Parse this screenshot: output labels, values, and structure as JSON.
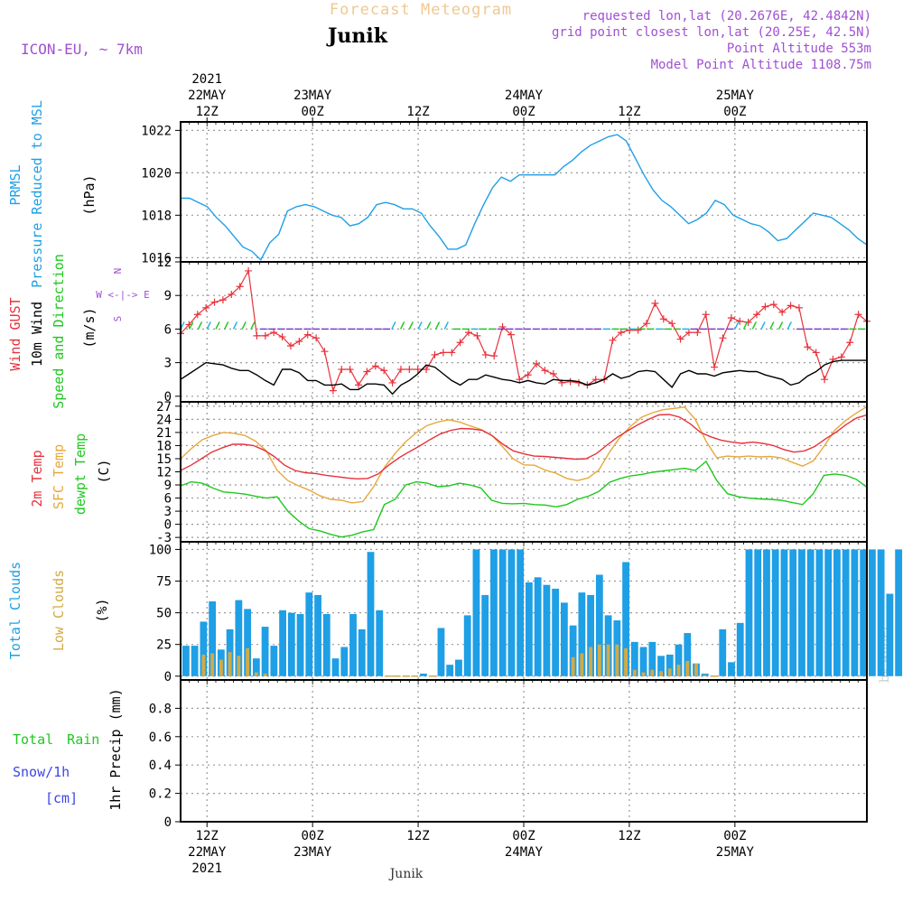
{
  "header": {
    "title": "Forecast Meteogram",
    "location": "Junik",
    "model": "ICON-EU, ~ 7km",
    "requested": "requested lon,lat (20.2676E, 42.4842N)",
    "gridpoint": "grid point closest lon,lat (20.25E, 42.5N)",
    "point_altitude": "Point Altitude 553m",
    "model_altitude": "Model Point Altitude 1108.75m",
    "footer_location": "Junik",
    "watermark": "by Angel"
  },
  "time_axis": {
    "hours": 78,
    "major_top": [
      {
        "h": 3,
        "l1": "2021",
        "l2": "22MAY",
        "l3": "12Z"
      },
      {
        "h": 15,
        "l1": "",
        "l2": "23MAY",
        "l3": "00Z"
      },
      {
        "h": 27,
        "l1": "",
        "l2": "",
        "l3": "12Z"
      },
      {
        "h": 39,
        "l1": "",
        "l2": "24MAY",
        "l3": "00Z"
      },
      {
        "h": 51,
        "l1": "",
        "l2": "",
        "l3": "12Z"
      },
      {
        "h": 63,
        "l1": "",
        "l2": "25MAY",
        "l3": "00Z"
      }
    ],
    "major_bottom": [
      {
        "h": 3,
        "l1": "12Z",
        "l2": "22MAY",
        "l3": "2021"
      },
      {
        "h": 15,
        "l1": "00Z",
        "l2": "23MAY",
        "l3": ""
      },
      {
        "h": 27,
        "l1": "12Z",
        "l2": "",
        "l3": ""
      },
      {
        "h": 39,
        "l1": "00Z",
        "l2": "24MAY",
        "l3": ""
      },
      {
        "h": 51,
        "l1": "12Z",
        "l2": "",
        "l3": ""
      },
      {
        "h": 63,
        "l1": "00Z",
        "l2": "25MAY",
        "l3": ""
      }
    ]
  },
  "colors": {
    "pressure": "#1e9fe6",
    "gust": "#e8323c",
    "wind": "#000000",
    "arrowCyan": "#1eb4e6",
    "arrowPurple": "#7d3cd2",
    "green": "#1ec81e",
    "t2m": "#e8323c",
    "sfc": "#e6a83c",
    "dew": "#1ec81e",
    "totalCloud": "#1e9fe6",
    "lowCloud": "#d2aa46",
    "violet": "#a050d2",
    "rain": "#1ec81e",
    "snow": "#3c46e6",
    "grid": "#999999"
  },
  "chart_data": [
    {
      "type": "line",
      "title": "PRMSL Pressure Reduced to MSL",
      "ylabel_lines": [
        "PRMSL",
        "Pressure Reduced to MSL",
        "(hPa)"
      ],
      "ylim": [
        1015.8,
        1022.4
      ],
      "yticks": [
        1016,
        1018,
        1020,
        1022
      ],
      "series": [
        {
          "name": "Pressure",
          "values": [
            1018.8,
            1018.8,
            1018.6,
            1018.4,
            1017.9,
            1017.5,
            1017.0,
            1016.5,
            1016.3,
            1015.9,
            1016.7,
            1017.1,
            1018.2,
            1018.4,
            1018.5,
            1018.4,
            1018.2,
            1018.0,
            1017.9,
            1017.5,
            1017.6,
            1017.9,
            1018.5,
            1018.6,
            1018.5,
            1018.3,
            1018.3,
            1018.1,
            1017.5,
            1017.0,
            1016.4,
            1016.4,
            1016.6,
            1017.6,
            1018.5,
            1019.3,
            1019.8,
            1019.6,
            1019.9,
            1019.9,
            1019.9,
            1019.9,
            1019.9,
            1020.3,
            1020.6,
            1021.0,
            1021.3,
            1021.5,
            1021.7,
            1021.8,
            1021.5,
            1020.7,
            1019.9,
            1019.2,
            1018.7,
            1018.4,
            1018.0,
            1017.6,
            1017.8,
            1018.1,
            1018.7,
            1018.5,
            1018.0,
            1017.8,
            1017.6,
            1017.5,
            1017.2,
            1016.8,
            1016.9,
            1017.3,
            1017.7,
            1018.1,
            1018.0,
            1017.9,
            1017.6,
            1017.3,
            1016.9,
            1016.6
          ]
        }
      ]
    },
    {
      "type": "line",
      "title": "Wind GUST / 10m Wind Speed and Direction",
      "ylabel_lines": [
        "Wind GUST",
        "10m Wind",
        "Speed and Direction",
        "(m/s)"
      ],
      "compass": [
        "N",
        "W <-|-> E",
        "S"
      ],
      "ylim": [
        -0.5,
        12
      ],
      "yticks": [
        0,
        3,
        6,
        9,
        12
      ],
      "series": [
        {
          "name": "Wind GUST",
          "values": [
            5.6,
            6.4,
            7.3,
            7.9,
            8.4,
            8.6,
            9.1,
            9.8,
            11.2,
            5.4,
            5.4,
            5.7,
            5.3,
            4.5,
            4.9,
            5.5,
            5.2,
            4.0,
            0.5,
            2.4,
            2.4,
            1.0,
            2.2,
            2.7,
            2.3,
            1.2,
            2.4,
            2.4,
            2.4,
            2.4,
            3.7,
            3.9,
            3.9,
            4.8,
            5.7,
            5.4,
            3.7,
            3.6,
            6.2,
            5.5,
            1.5,
            1.9,
            2.9,
            2.3,
            2.0,
            1.2,
            1.3,
            1.2,
            1.0,
            1.5,
            1.5,
            5.0,
            5.7,
            5.9,
            5.9,
            6.5,
            8.3,
            6.9,
            6.5,
            5.1,
            5.7,
            5.7,
            7.3,
            2.6,
            5.2,
            7.0,
            6.7,
            6.6,
            7.3,
            8.0,
            8.2,
            7.5,
            8.1,
            7.9,
            4.4,
            3.9,
            1.5,
            3.3,
            3.5,
            4.8,
            7.3,
            6.7
          ]
        },
        {
          "name": "10m Wind",
          "values": [
            1.5,
            2.0,
            2.5,
            3.0,
            2.9,
            2.8,
            2.5,
            2.3,
            2.3,
            1.9,
            1.4,
            1.0,
            2.4,
            2.4,
            2.1,
            1.4,
            1.4,
            1.0,
            1.0,
            1.1,
            0.6,
            0.6,
            1.1,
            1.1,
            1.0,
            0.2,
            1.0,
            1.4,
            2.0,
            2.8,
            2.6,
            2.0,
            1.4,
            1.0,
            1.5,
            1.5,
            1.9,
            1.7,
            1.5,
            1.4,
            1.2,
            1.4,
            1.2,
            1.1,
            1.5,
            1.4,
            1.4,
            1.3,
            1.0,
            1.2,
            1.5,
            2.0,
            1.6,
            1.8,
            2.2,
            2.3,
            2.2,
            1.5,
            0.8,
            2.0,
            2.3,
            2.0,
            2.0,
            1.8,
            2.1,
            2.2,
            2.3,
            2.2,
            2.2,
            1.9,
            1.7,
            1.5,
            1.0,
            1.2,
            1.8,
            2.2,
            2.8,
            3.1,
            3.2,
            3.2,
            3.2,
            3.2
          ]
        }
      ]
    },
    {
      "type": "line",
      "title": "2m Temp / SFC Temp / dewpt Temp",
      "ylabel_lines": [
        "2m Temp",
        "SFC Temp",
        "dewpt Temp",
        "(C)"
      ],
      "ylim": [
        -4,
        28
      ],
      "yticks": [
        -3,
        0,
        3,
        6,
        9,
        12,
        15,
        18,
        21,
        24,
        27
      ],
      "series": [
        {
          "name": "2m Temp",
          "values": [
            12.3,
            13.5,
            15.0,
            16.5,
            17.5,
            18.3,
            18.3,
            18.0,
            17.0,
            15.5,
            13.5,
            12.3,
            11.8,
            11.6,
            11.2,
            10.9,
            10.6,
            10.4,
            10.5,
            11.5,
            13.5,
            15.2,
            16.6,
            17.9,
            19.4,
            20.7,
            21.5,
            21.9,
            21.8,
            21.5,
            20.2,
            18.3,
            16.8,
            16.1,
            15.6,
            15.5,
            15.3,
            15.1,
            14.9,
            15.0,
            16.2,
            18.1,
            19.9,
            21.4,
            22.8,
            24.0,
            25.0,
            25.1,
            24.5,
            23.0,
            21.0,
            20.0,
            19.2,
            18.8,
            18.5,
            18.8,
            18.5,
            18.0,
            17.1,
            16.5,
            16.8,
            17.8,
            19.5,
            21.0,
            22.8,
            24.3,
            25.0
          ]
        },
        {
          "name": "SFC Temp",
          "values": [
            15.0,
            17.3,
            19.3,
            20.3,
            21.0,
            20.8,
            20.3,
            19.0,
            16.8,
            12.3,
            10.0,
            8.8,
            7.8,
            6.5,
            5.7,
            5.5,
            4.9,
            5.2,
            8.6,
            13.0,
            16.2,
            18.9,
            21.0,
            22.6,
            23.4,
            23.9,
            23.4,
            22.5,
            21.7,
            20.4,
            17.8,
            15.0,
            13.6,
            13.5,
            12.4,
            11.7,
            10.5,
            10.0,
            10.6,
            12.4,
            16.5,
            20.0,
            22.5,
            24.5,
            25.5,
            26.2,
            26.5,
            26.8,
            24.0,
            19.0,
            15.2,
            15.6,
            15.4,
            15.6,
            15.4,
            15.5,
            15.2,
            14.2,
            13.3,
            14.5,
            17.8,
            21.5,
            23.7,
            25.4,
            26.9
          ]
        },
        {
          "name": "dewpt Temp",
          "values": [
            8.8,
            9.7,
            9.4,
            8.3,
            7.4,
            7.2,
            6.9,
            6.4,
            6.0,
            6.3,
            3.0,
            0.8,
            -1.0,
            -1.5,
            -2.3,
            -2.9,
            -2.5,
            -1.7,
            -1.2,
            4.5,
            5.7,
            9.0,
            9.7,
            9.4,
            8.6,
            8.8,
            9.4,
            9.0,
            8.3,
            5.5,
            4.8,
            4.7,
            4.8,
            4.5,
            4.4,
            4.0,
            4.5,
            5.7,
            6.4,
            7.5,
            9.6,
            10.5,
            11.1,
            11.4,
            11.9,
            12.2,
            12.5,
            12.8,
            12.3,
            14.4,
            10.0,
            7.0,
            6.3,
            6.0,
            5.8,
            5.7,
            5.5,
            5.0,
            4.5,
            7.0,
            11.2,
            11.5,
            11.2,
            10.3,
            8.5
          ]
        }
      ]
    },
    {
      "type": "bar",
      "title": "Total Clouds / Low Clouds",
      "ylabel_lines": [
        "Total Clouds",
        "Low Clouds",
        "(%)"
      ],
      "ylim": [
        -3,
        106
      ],
      "yticks": [
        0,
        25,
        50,
        75,
        100
      ],
      "series": [
        {
          "name": "Total Clouds",
          "values": [
            24,
            24,
            43,
            59,
            21,
            37,
            60,
            53,
            14,
            39,
            24,
            52,
            50,
            49,
            66,
            64,
            49,
            14,
            23,
            49,
            37,
            98,
            52,
            0,
            0,
            0,
            0,
            2,
            0,
            38,
            9,
            13,
            48,
            100,
            64,
            100,
            100,
            100,
            100,
            74,
            78,
            72,
            69,
            58,
            40,
            66,
            64,
            80,
            48,
            44,
            90,
            27,
            23,
            27,
            16,
            17,
            25,
            34,
            10,
            2,
            0,
            37,
            11,
            42,
            100,
            100,
            100,
            100,
            100,
            100,
            100,
            100,
            100,
            100,
            100,
            100,
            100,
            100,
            100,
            100,
            65,
            100
          ]
        },
        {
          "name": "Low Clouds",
          "values": [
            0,
            0,
            17,
            18,
            13,
            19,
            16,
            22,
            3,
            2,
            0,
            0,
            0,
            0,
            0,
            0,
            0,
            0,
            0,
            0,
            0,
            0,
            0,
            0,
            0,
            0,
            0,
            0,
            0,
            0,
            0,
            0,
            0,
            0,
            0,
            0,
            0,
            0,
            0,
            0,
            0,
            0,
            0,
            0,
            15,
            18,
            23,
            25,
            25,
            25,
            22,
            5,
            3,
            5,
            4,
            6,
            9,
            12,
            10,
            1,
            0,
            0,
            0,
            0,
            0,
            0,
            0,
            0,
            0,
            0,
            0,
            0,
            0,
            0,
            0,
            0,
            0,
            0,
            0,
            0,
            0,
            0
          ]
        }
      ]
    },
    {
      "type": "line",
      "title": "1hr Precip",
      "ylabel_lines": [
        "Total Rain",
        "Snow/1h",
        "[cm]",
        "1hr Precip (mm)"
      ],
      "ylim": [
        0,
        1.0
      ],
      "yticks": [
        0,
        0.2,
        0.4,
        0.6,
        0.8
      ],
      "series": [
        {
          "name": "Total Rain",
          "values": []
        }
      ]
    }
  ]
}
